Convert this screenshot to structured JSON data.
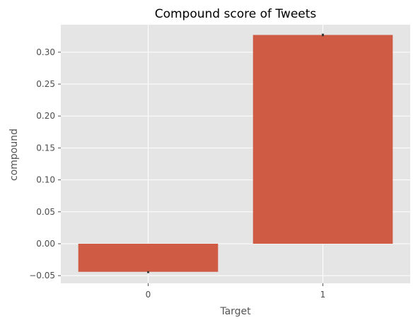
{
  "chart_data": {
    "type": "bar",
    "title": "Compound score of Tweets",
    "xlabel": "Target",
    "ylabel": "compound",
    "categories": [
      "0",
      "1"
    ],
    "values": [
      -0.044,
      0.327
    ],
    "error_bars": [
      [
        -0.046,
        -0.043
      ],
      [
        0.325,
        0.329
      ]
    ],
    "ylim": [
      -0.062,
      0.343
    ],
    "yticks": [
      -0.05,
      0.0,
      0.05,
      0.1,
      0.15,
      0.2,
      0.25,
      0.3
    ],
    "ytick_labels": [
      "−0.05",
      "0.00",
      "0.05",
      "0.10",
      "0.15",
      "0.20",
      "0.25",
      "0.30"
    ],
    "grid": true,
    "style": "ggplot",
    "colors": {
      "bar": "#cf5b45",
      "errorbar": "#3b3b3b",
      "plot_background": "#e5e5e5",
      "grid": "#ffffff"
    }
  }
}
